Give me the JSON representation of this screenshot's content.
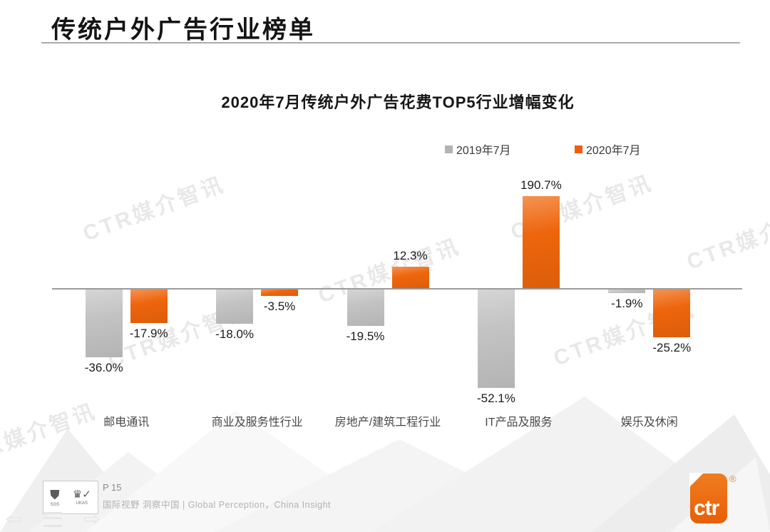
{
  "slide": {
    "title": "传统户外广告行业榜单",
    "watermark_text": "CTR媒介智讯"
  },
  "chart_data": {
    "type": "bar",
    "title": "2020年7月传统户外广告花费TOP5行业增幅变化",
    "categories": [
      "邮电通讯",
      "商业及服务性行业",
      "房地产/建筑工程行业",
      "IT产品及服务",
      "娱乐及休闲"
    ],
    "series": [
      {
        "name": "2019年7月",
        "color": "#c3c3c3",
        "legend_color": "#b3b3b3",
        "values": [
          -36.0,
          -18.0,
          -19.5,
          -52.1,
          -1.9
        ],
        "labels": [
          "-36.0%",
          "-18.0%",
          "-19.5%",
          "-52.1%",
          "-1.9%"
        ]
      },
      {
        "name": "2020年7月",
        "color": "#ee650c",
        "legend_color": "#f25c12",
        "values": [
          -17.9,
          -3.5,
          12.3,
          190.7,
          -25.2
        ],
        "labels": [
          "-17.9%",
          "-3.5%",
          "12.3%",
          "190.7%",
          "-25.2%"
        ]
      }
    ],
    "unit": "percent",
    "baseline": 0,
    "grid": false,
    "legend_position": "top-right"
  },
  "footer": {
    "page_label": "P 15",
    "tagline": "国际视野 洞察中国 |  Global Perception，China Insight",
    "cert_labels": [
      "SGS",
      "UKAS"
    ],
    "logo_text": "ctr",
    "registered_mark": "®"
  }
}
